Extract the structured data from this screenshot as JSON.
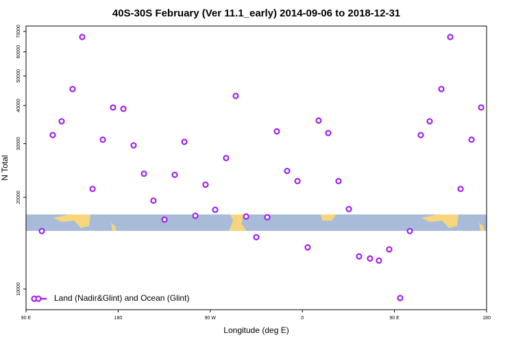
{
  "chart_data": {
    "type": "scatter",
    "title": "40S-30S February (Ver 11.1_early)   2014-09-06 to 2018-12-31",
    "x_label": "Longitude (deg E)",
    "y_label": "N Total",
    "xlim": [
      90,
      540
    ],
    "xticks": [
      {
        "value": 90,
        "label": "90 E"
      },
      {
        "value": 180,
        "label": "180"
      },
      {
        "value": 270,
        "label": "90 W"
      },
      {
        "value": 360,
        "label": "0"
      },
      {
        "value": 450,
        "label": "90 E"
      },
      {
        "value": 540,
        "label": "180"
      }
    ],
    "ylim": [
      8560,
      72900
    ],
    "ylog": true,
    "yticks": [
      10000,
      20000,
      30000,
      40000,
      50000,
      60000,
      70000
    ],
    "legend": "bottom-left",
    "series": [
      {
        "name": "Land (Nadir&Glint) and Ocean (Glint)",
        "color": "#a020f0",
        "x": [
          105.4,
          116.1,
          124.8,
          135.5,
          144.9,
          155,
          165,
          175,
          185.1,
          195.1,
          205.2,
          214.5,
          225.3,
          235.3,
          244.7,
          255.4,
          265.4,
          274.8,
          285.5,
          294.9,
          305,
          315,
          325.7,
          335.1,
          345.1,
          355.2,
          365.2,
          375.9,
          385.3,
          395.3,
          405.4,
          415.4,
          426.1,
          434.8,
          444.9,
          455.6,
          465,
          475.7,
          484.4,
          495.8,
          504.5,
          514.6,
          525.3,
          534.7
        ],
        "values": [
          15500,
          32000,
          35500,
          45300,
          67100,
          21300,
          30900,
          39400,
          39000,
          29600,
          23900,
          19500,
          16900,
          23700,
          30400,
          17400,
          22000,
          18200,
          26900,
          43000,
          17300,
          14800,
          17200,
          32900,
          24400,
          22600,
          13700,
          35700,
          32500,
          22600,
          18300,
          12800,
          12600,
          12400,
          13500,
          9350,
          15500,
          32000,
          35500,
          45300,
          67100,
          21300,
          30900,
          39400
        ]
      }
    ]
  }
}
